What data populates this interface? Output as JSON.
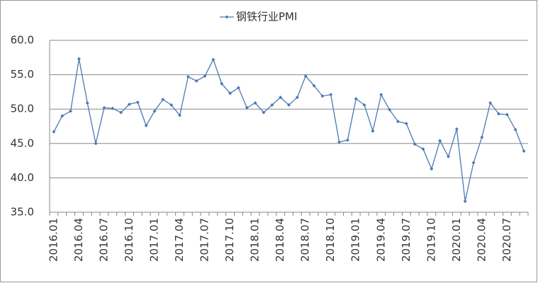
{
  "chart_data": {
    "type": "line",
    "categories": [
      "2016.01",
      null,
      null,
      "2016.04",
      null,
      null,
      "2016.07",
      null,
      null,
      "2016.10",
      null,
      null,
      "2017.01",
      null,
      null,
      "2017.04",
      null,
      null,
      "2017.07",
      null,
      null,
      "2017.10",
      null,
      null,
      "2018.01",
      null,
      null,
      "2018.04",
      null,
      null,
      "2018.07",
      null,
      null,
      "2018.10",
      null,
      null,
      "2019.01",
      null,
      null,
      "2019.04",
      null,
      null,
      "2019.07",
      null,
      null,
      "2019.10",
      null,
      null,
      "2020.01",
      null,
      null,
      "2020.04",
      null,
      null,
      "2020.07",
      null,
      null
    ],
    "series": [
      {
        "name": "钢铁行业PMI",
        "color": "#4a7ab5",
        "values": [
          46.7,
          49.0,
          49.7,
          57.3,
          50.9,
          45.0,
          50.2,
          50.1,
          49.5,
          50.7,
          51.0,
          47.6,
          49.7,
          51.4,
          50.6,
          49.1,
          54.7,
          54.1,
          54.8,
          57.2,
          53.7,
          52.3,
          53.1,
          50.2,
          50.9,
          49.5,
          50.6,
          51.7,
          50.6,
          51.7,
          54.8,
          53.4,
          51.9,
          52.1,
          45.2,
          45.5,
          51.5,
          50.6,
          46.8,
          52.1,
          49.9,
          48.2,
          47.9,
          44.9,
          44.2,
          41.3,
          45.4,
          43.1,
          47.1,
          36.6,
          42.2,
          45.9,
          50.9,
          49.3,
          49.2,
          47.0,
          43.9
        ]
      }
    ],
    "ylim": [
      35,
      60
    ],
    "yticks": [
      {
        "value": 35,
        "label": "35.0"
      },
      {
        "value": 40,
        "label": "40.0"
      },
      {
        "value": 45,
        "label": "45.0"
      },
      {
        "value": 50,
        "label": "50.0"
      },
      {
        "value": 55,
        "label": "55.0"
      },
      {
        "value": 60,
        "label": "60.0"
      }
    ],
    "grid": true
  }
}
